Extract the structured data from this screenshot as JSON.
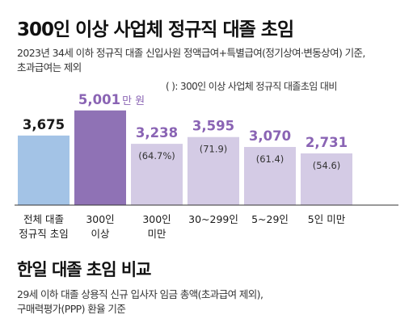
{
  "title": "300인 이상 사업체 정규직 대졸 초임",
  "subtitle_lines": [
    "2023년 34세 이하 정규직 대졸 신입사원 정액급여+특별급여(정기상여·변동상여) 기준,",
    "초과급여는 제외"
  ],
  "legend_note": "( ): 300인 이상 사업체 정규직 대졸초임 대비",
  "value_unit": "만 원",
  "chart_data": {
    "type": "bar",
    "categories": [
      "전체 대졸\n정규직 초임",
      "300인\n이상",
      "300인\n미만",
      "30~299인",
      "5~29인",
      "5인 미만"
    ],
    "values": [
      3675,
      5001,
      3238,
      3595,
      3070,
      2731
    ],
    "value_labels": [
      "3,675",
      "5,001",
      "3,238",
      "3,595",
      "3,070",
      "2,731"
    ],
    "ratio_labels": [
      "",
      "",
      "(64.7%)",
      "(71.9)",
      "(61.4)",
      "(54.6)"
    ],
    "ylim": [
      0,
      6100
    ],
    "grid": false,
    "legend": "none",
    "colors": [
      "#a3c3e6",
      "#8f72b5",
      "#d4cbe5",
      "#d4cbe5",
      "#d4cbe5",
      "#d4cbe5"
    ],
    "label_colors": [
      "#1a1a1a",
      "#8a64b4",
      "#8a64b4",
      "#8a64b4",
      "#8a64b4",
      "#8a64b4"
    ]
  },
  "section2": {
    "title": "한일 대졸 초임 비교",
    "note_lines": [
      "29세 이하 대졸 상용직 신규 입사자 임금 총액(초과급여 제외),",
      "구매력평가(PPP) 환율 기준"
    ]
  }
}
